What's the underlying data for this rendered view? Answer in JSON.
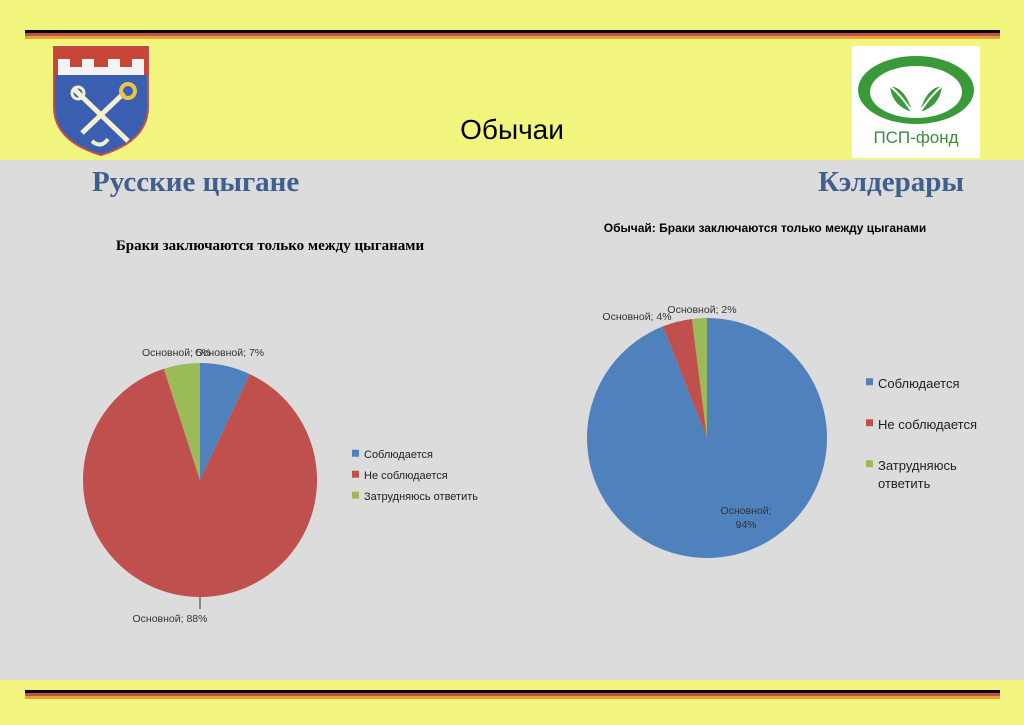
{
  "slide": {
    "title": "Обычаи",
    "left_heading": "Русские цыгане",
    "right_heading": "Кэлдерары",
    "logo_text": "ПСП-фонд",
    "accent_colors": {
      "background": "#f2f57e",
      "panel": "#dcdcdc",
      "heading": "#3f5f8f"
    }
  },
  "chart_data": [
    {
      "type": "pie",
      "title": "Браки заключаются только между цыганами",
      "categories": [
        "Соблюдается",
        "Не соблюдается",
        "Затрудняюсь ответить"
      ],
      "values": [
        7,
        88,
        5
      ],
      "colors": [
        "#4f81bd",
        "#c0504d",
        "#9bbb59"
      ],
      "data_labels": [
        "Основной; 7%",
        "Основной; 88%",
        "Основной; 5%"
      ],
      "legend_position": "right"
    },
    {
      "type": "pie",
      "title": "Обычай: Браки заключаются только между цыганами",
      "categories": [
        "Соблюдается",
        "Не соблюдается",
        "Затрудняюсь ответить"
      ],
      "values": [
        94,
        4,
        2
      ],
      "colors": [
        "#4f81bd",
        "#c0504d",
        "#9bbb59"
      ],
      "data_labels": [
        "Основной; 94%",
        "Основной; 4%",
        "Основной; 2%"
      ],
      "legend_position": "right"
    }
  ]
}
